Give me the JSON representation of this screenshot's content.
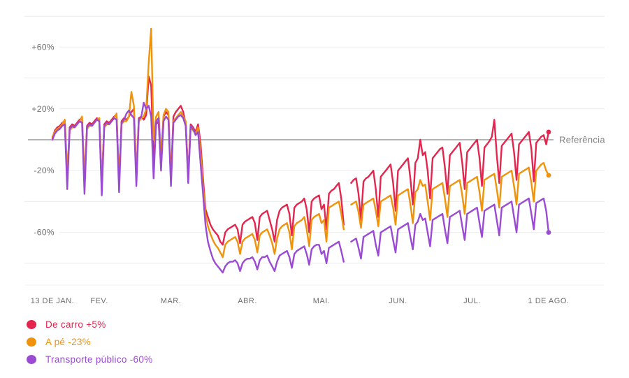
{
  "chart_data": {
    "type": "line",
    "title": "",
    "x_axis": {
      "ticks": [
        {
          "label": "13 DE JAN.",
          "day": 0
        },
        {
          "label": "FEV.",
          "day": 19
        },
        {
          "label": "MAR.",
          "day": 48
        },
        {
          "label": "ABR.",
          "day": 79
        },
        {
          "label": "MAI.",
          "day": 109
        },
        {
          "label": "JUN.",
          "day": 140
        },
        {
          "label": "JUL.",
          "day": 170
        },
        {
          "label": "1 DE AGO.",
          "day": 201
        }
      ],
      "days": 202
    },
    "y_axis": {
      "unit": "%",
      "tick_labels": [
        "+60%",
        "+20%",
        "-20%",
        "-60%"
      ],
      "tick_values": [
        60,
        20,
        -20,
        -60
      ],
      "gridline_values": [
        80,
        60,
        40,
        20,
        -20,
        -40,
        -60,
        -80
      ],
      "range": [
        -95,
        85
      ]
    },
    "reference_line": {
      "label": "Referência",
      "value": 0,
      "color": "#9b9b9b"
    },
    "grid": true,
    "legend_position": "bottom-left",
    "series": [
      {
        "name": "De carro",
        "change_label": "+5%",
        "legend_label": "De carro +5%",
        "color": "#e4254e",
        "values": [
          1,
          6,
          8,
          9,
          11,
          12,
          -26,
          8,
          10,
          9,
          11,
          13,
          14,
          -28,
          9,
          11,
          10,
          12,
          14,
          13,
          -30,
          10,
          12,
          11,
          13,
          15,
          16,
          -27,
          12,
          14,
          13,
          15,
          18,
          20,
          -25,
          14,
          15,
          13,
          16,
          41,
          35,
          -15,
          10,
          12,
          -18,
          15,
          18,
          16,
          -25,
          15,
          18,
          20,
          22,
          18,
          10,
          -22,
          10,
          8,
          5,
          10,
          -2,
          -25,
          -45,
          -50,
          -55,
          -58,
          -60,
          -62,
          -66,
          -68,
          -60,
          -58,
          -57,
          -56,
          -55,
          -58,
          -67,
          -55,
          -53,
          -52,
          -51,
          -50,
          -54,
          -65,
          -50,
          -48,
          -47,
          -46,
          -52,
          -58,
          -66,
          -52,
          -46,
          -44,
          -43,
          -42,
          -48,
          -62,
          -44,
          -42,
          -41,
          -40,
          -38,
          -45,
          -60,
          -40,
          -38,
          -37,
          -36,
          -45,
          -42,
          -58,
          -35,
          -33,
          -32,
          -30,
          -28,
          -38,
          -55,
          null,
          null,
          -28,
          -26,
          -25,
          -35,
          -52,
          -27,
          -25,
          -24,
          -22,
          -20,
          -32,
          -50,
          -24,
          -22,
          -20,
          -18,
          -16,
          -28,
          -46,
          -20,
          -18,
          -16,
          -14,
          -12,
          -25,
          -42,
          -15,
          -12,
          0,
          -10,
          -8,
          -20,
          -38,
          -12,
          -10,
          -8,
          -6,
          -5,
          -18,
          -35,
          -10,
          -8,
          -6,
          -4,
          -2,
          -15,
          -32,
          -8,
          -6,
          -4,
          -2,
          0,
          -12,
          -30,
          -5,
          -3,
          -1,
          2,
          13,
          -10,
          -28,
          -4,
          -2,
          0,
          2,
          4,
          -8,
          -26,
          -3,
          -1,
          1,
          3,
          5,
          -6,
          -27,
          -2,
          0,
          2,
          3,
          -3,
          5
        ]
      },
      {
        "name": "A pé",
        "change_label": "-23%",
        "legend_label": "A pé -23%",
        "color": "#f0930c",
        "values": [
          2,
          5,
          7,
          8,
          10,
          13,
          -20,
          6,
          8,
          8,
          10,
          12,
          15,
          -24,
          7,
          9,
          9,
          11,
          13,
          14,
          -26,
          8,
          10,
          10,
          12,
          14,
          17,
          -28,
          10,
          12,
          12,
          15,
          31,
          22,
          -22,
          12,
          14,
          15,
          20,
          50,
          72,
          0,
          15,
          18,
          -10,
          16,
          20,
          18,
          -28,
          12,
          14,
          16,
          18,
          15,
          12,
          -25,
          8,
          6,
          4,
          8,
          -8,
          -30,
          -48,
          -56,
          -61,
          -65,
          -68,
          -70,
          -73,
          -76,
          -68,
          -66,
          -65,
          -64,
          -63,
          -66,
          -74,
          -66,
          -64,
          -63,
          -62,
          -61,
          -65,
          -73,
          -62,
          -60,
          -59,
          -58,
          -62,
          -67,
          -74,
          -64,
          -58,
          -56,
          -55,
          -54,
          -60,
          -71,
          -56,
          -54,
          -53,
          -52,
          -50,
          -58,
          -69,
          -52,
          -50,
          -49,
          -48,
          -54,
          -52,
          -66,
          -44,
          -43,
          -42,
          -41,
          -40,
          -48,
          -58,
          null,
          null,
          -42,
          -41,
          -40,
          -47,
          -57,
          -42,
          -41,
          -40,
          -39,
          -38,
          -46,
          -56,
          -40,
          -39,
          -38,
          -37,
          -36,
          -44,
          -55,
          -36,
          -35,
          -34,
          -33,
          -32,
          -42,
          -54,
          -34,
          -32,
          -26,
          -30,
          -29,
          -40,
          -52,
          -32,
          -31,
          -30,
          -29,
          -28,
          -38,
          -50,
          -30,
          -29,
          -28,
          -27,
          -26,
          -36,
          -48,
          -28,
          -27,
          -26,
          -25,
          -24,
          -34,
          -46,
          -26,
          -25,
          -24,
          -23,
          -22,
          -32,
          -44,
          -24,
          -23,
          -22,
          -21,
          -20,
          -30,
          -42,
          -22,
          -21,
          -20,
          -19,
          -18,
          -28,
          -40,
          -20,
          -18,
          -16,
          -15,
          -20,
          -23
        ]
      },
      {
        "name": "Transporte público",
        "change_label": "-60%",
        "legend_label": "Transporte público -60%",
        "color": "#9b4ad3",
        "values": [
          0,
          4,
          6,
          7,
          9,
          10,
          -32,
          7,
          9,
          8,
          10,
          12,
          11,
          -35,
          8,
          10,
          9,
          11,
          13,
          12,
          -36,
          9,
          11,
          10,
          12,
          14,
          13,
          -34,
          11,
          13,
          17,
          19,
          16,
          14,
          -30,
          13,
          15,
          24,
          20,
          22,
          15,
          -25,
          12,
          14,
          -20,
          12,
          15,
          13,
          -30,
          11,
          13,
          15,
          16,
          14,
          9,
          -28,
          9,
          7,
          3,
          5,
          -15,
          -35,
          -55,
          -66,
          -72,
          -77,
          -80,
          -82,
          -84,
          -86,
          -82,
          -80,
          -79,
          -79,
          -78,
          -80,
          -85,
          -80,
          -78,
          -77,
          -77,
          -76,
          -79,
          -84,
          -78,
          -76,
          -76,
          -75,
          -79,
          -82,
          -85,
          -79,
          -75,
          -74,
          -73,
          -72,
          -76,
          -83,
          -74,
          -72,
          -71,
          -70,
          -69,
          -74,
          -81,
          -71,
          -69,
          -68,
          -68,
          -74,
          -72,
          -80,
          -70,
          -69,
          -68,
          -67,
          -66,
          -72,
          -79,
          null,
          null,
          -66,
          -65,
          -64,
          -70,
          -77,
          -63,
          -62,
          -61,
          -60,
          -59,
          -68,
          -75,
          -60,
          -59,
          -58,
          -57,
          -56,
          -65,
          -73,
          -58,
          -57,
          -56,
          -55,
          -54,
          -63,
          -71,
          -55,
          -53,
          -48,
          -52,
          -51,
          -60,
          -69,
          -52,
          -51,
          -50,
          -49,
          -48,
          -58,
          -67,
          -50,
          -49,
          -48,
          -47,
          -46,
          -56,
          -65,
          -48,
          -47,
          -46,
          -45,
          -44,
          -54,
          -63,
          -46,
          -45,
          -44,
          -43,
          -42,
          -52,
          -62,
          -44,
          -43,
          -42,
          -41,
          -40,
          -50,
          -60,
          -42,
          -41,
          -40,
          -39,
          -38,
          -48,
          -58,
          -41,
          -40,
          -39,
          -38,
          -46,
          -60
        ]
      }
    ]
  },
  "colors": {
    "background": "#ffffff",
    "gridline": "#ececec",
    "axis_text": "#6e6e6e",
    "reference_line": "#9b9b9b",
    "reference_text": "#808080"
  }
}
